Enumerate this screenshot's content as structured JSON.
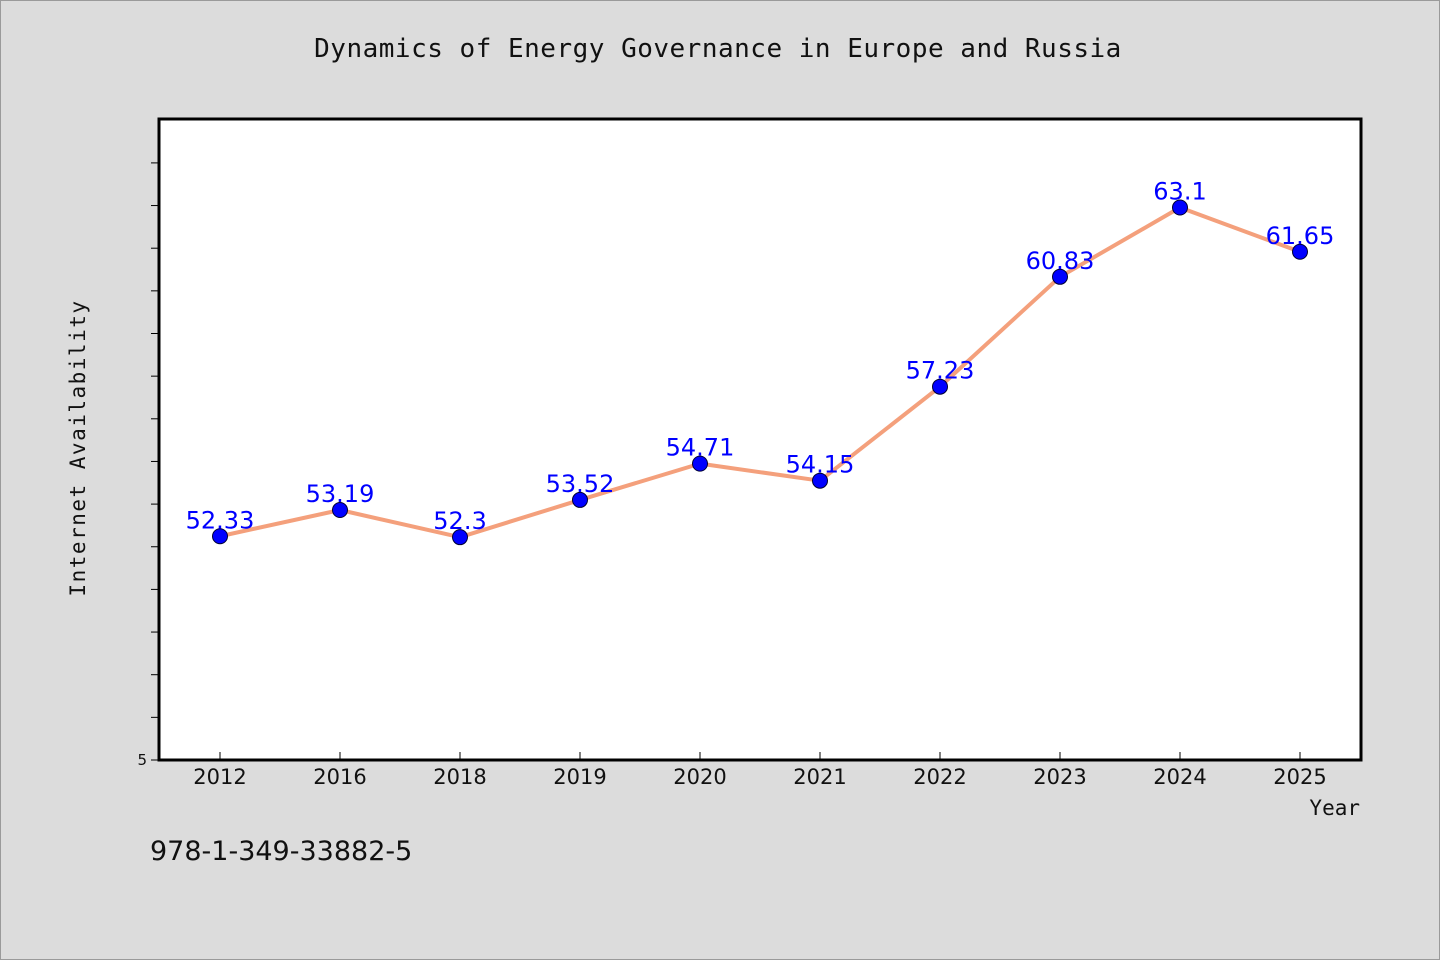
{
  "chart_data": {
    "type": "line",
    "title": "Dynamics of Energy Governance in Europe and Russia",
    "xlabel": "Year",
    "ylabel": "Internet Availability",
    "categories": [
      "2012",
      "2016",
      "2018",
      "2019",
      "2020",
      "2021",
      "2022",
      "2023",
      "2024",
      "2025"
    ],
    "series": [
      {
        "values": [
          52.33,
          53.19,
          52.3,
          53.52,
          54.71,
          54.15,
          57.23,
          60.83,
          63.1,
          61.65
        ],
        "data_labels": [
          "52.33",
          "53.19",
          "52.3",
          "53.52",
          "54.71",
          "54.15",
          "57.23",
          "60.83",
          "63.1",
          "61.65"
        ],
        "line_color": "#f4a07c",
        "marker_color": "#0000ff"
      }
    ],
    "ylim": [
      45,
      66
    ],
    "ytick_labels": [
      "5"
    ],
    "grid": false,
    "legend": "none",
    "label_color": "#0000ff",
    "background_color": "#dcdcdc",
    "plot_background_color": "#ffffff"
  },
  "footnote": "978-1-349-33882-5"
}
